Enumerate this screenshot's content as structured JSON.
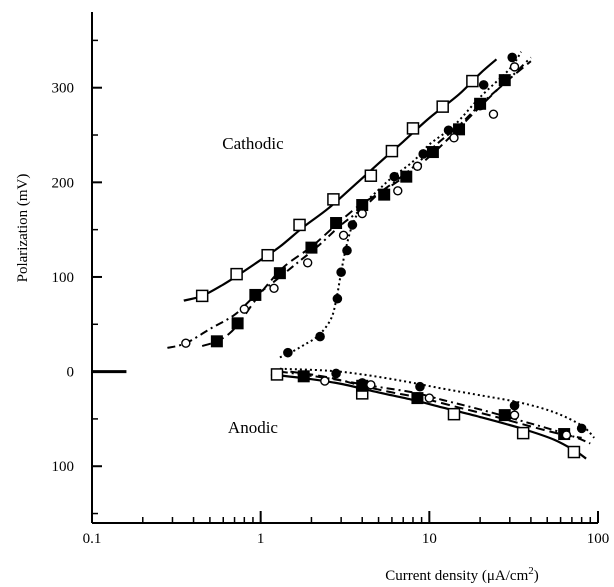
{
  "chart_data": {
    "type": "line",
    "title": "",
    "xlabel": "Current density (μA/cm",
    "xlabel_sup": "2",
    "xlabel_close": ")",
    "ylabel": "Polarization (mV)",
    "xscale": "log",
    "xlim": [
      0.1,
      100
    ],
    "ylim": [
      -160,
      380
    ],
    "grid": false,
    "legend": "none",
    "x_ticks": [
      {
        "value": 0.1,
        "label": "0.1"
      },
      {
        "value": 1,
        "label": "1"
      },
      {
        "value": 10,
        "label": "10"
      },
      {
        "value": 100,
        "label": "100"
      }
    ],
    "y_ticks": [
      {
        "value": -100,
        "label": "100"
      },
      {
        "value": 0,
        "label": "0"
      },
      {
        "value": 100,
        "label": "100"
      },
      {
        "value": 200,
        "label": "200"
      },
      {
        "value": 300,
        "label": "300"
      }
    ],
    "zero_marker": {
      "x_start": 0.1,
      "x_end": 0.16,
      "y": 0
    },
    "annotations": [
      {
        "text": "Cathodic",
        "x": 0.9,
        "y": 235
      },
      {
        "text": "Anodic",
        "x": 0.9,
        "y": -65
      }
    ],
    "series": [
      {
        "marker": "open-square",
        "line": "solid",
        "cathodic": {
          "curve": [
            [
              0.35,
              75
            ],
            [
              0.45,
              80
            ],
            [
              0.6,
              92
            ],
            [
              0.75,
              103
            ],
            [
              1.0,
              118
            ],
            [
              1.3,
              132
            ],
            [
              1.8,
              153
            ],
            [
              2.5,
              172
            ],
            [
              3.5,
              195
            ],
            [
              5,
              220
            ],
            [
              7,
              243
            ],
            [
              10,
              268
            ],
            [
              15,
              293
            ],
            [
              20,
              315
            ],
            [
              25,
              330
            ]
          ],
          "points": [
            [
              0.45,
              80
            ],
            [
              0.72,
              103
            ],
            [
              1.1,
              123
            ],
            [
              1.7,
              155
            ],
            [
              2.7,
              182
            ],
            [
              4.5,
              207
            ],
            [
              6,
              233
            ],
            [
              8,
              257
            ],
            [
              12,
              280
            ],
            [
              18,
              307
            ]
          ]
        },
        "anodic": {
          "curve": [
            [
              1.15,
              -3
            ],
            [
              2,
              -8
            ],
            [
              3,
              -13
            ],
            [
              5,
              -22
            ],
            [
              8,
              -30
            ],
            [
              12,
              -38
            ],
            [
              20,
              -48
            ],
            [
              35,
              -60
            ],
            [
              55,
              -72
            ],
            [
              75,
              -85
            ],
            [
              85,
              -92
            ]
          ],
          "points": [
            [
              1.25,
              -3
            ],
            [
              4,
              -23
            ],
            [
              14,
              -45
            ],
            [
              36,
              -65
            ],
            [
              72,
              -85
            ]
          ]
        }
      },
      {
        "marker": "filled-square",
        "line": "long-dash",
        "cathodic": {
          "curve": [
            [
              0.45,
              27
            ],
            [
              0.55,
              32
            ],
            [
              0.65,
              40
            ],
            [
              0.75,
              52
            ],
            [
              0.9,
              72
            ],
            [
              1.1,
              92
            ],
            [
              1.4,
              112
            ],
            [
              2,
              132
            ],
            [
              2.8,
              155
            ],
            [
              3.8,
              175
            ],
            [
              5,
              188
            ],
            [
              7,
              205
            ],
            [
              10,
              227
            ],
            [
              14,
              252
            ],
            [
              20,
              280
            ],
            [
              28,
              305
            ],
            [
              40,
              328
            ]
          ],
          "points": [
            [
              0.55,
              32
            ],
            [
              0.73,
              51
            ],
            [
              0.93,
              81
            ],
            [
              1.3,
              104
            ],
            [
              2,
              131
            ],
            [
              2.8,
              157
            ],
            [
              4,
              176
            ],
            [
              5.4,
              187
            ],
            [
              7.3,
              206
            ],
            [
              10.5,
              232
            ],
            [
              15,
              256
            ],
            [
              20,
              283
            ],
            [
              28,
              308
            ]
          ]
        },
        "anodic": {
          "curve": [
            [
              1.5,
              0
            ],
            [
              2.5,
              -6
            ],
            [
              4,
              -15
            ],
            [
              6,
              -22
            ],
            [
              9,
              -28
            ],
            [
              15,
              -38
            ],
            [
              25,
              -48
            ],
            [
              40,
              -58
            ],
            [
              60,
              -66
            ],
            [
              80,
              -70
            ]
          ],
          "points": [
            [
              1.8,
              -5
            ],
            [
              4,
              -15
            ],
            [
              8.5,
              -28
            ],
            [
              28,
              -46
            ],
            [
              63,
              -66
            ]
          ]
        }
      },
      {
        "marker": "open-circle",
        "line": "dash-dot",
        "cathodic": {
          "curve": [
            [
              0.28,
              25
            ],
            [
              0.36,
              30
            ],
            [
              0.5,
              45
            ],
            [
              0.7,
              60
            ],
            [
              0.9,
              78
            ],
            [
              1.2,
              95
            ],
            [
              1.6,
              113
            ],
            [
              2.2,
              133
            ],
            [
              3,
              155
            ],
            [
              4,
              172
            ],
            [
              5,
              188
            ],
            [
              6.5,
              203
            ],
            [
              8.5,
              220
            ],
            [
              11,
              240
            ],
            [
              15,
              260
            ],
            [
              20,
              282
            ],
            [
              28,
              305
            ],
            [
              40,
              332
            ]
          ],
          "points": [
            [
              0.36,
              30
            ],
            [
              0.8,
              66
            ],
            [
              1.2,
              88
            ],
            [
              1.9,
              115
            ],
            [
              3.1,
              144
            ],
            [
              4,
              167
            ],
            [
              6.5,
              191
            ],
            [
              8.5,
              217
            ],
            [
              14,
              247
            ],
            [
              24,
              272
            ],
            [
              32,
              322
            ]
          ]
        },
        "anodic": {
          "curve": [
            [
              1.3,
              0
            ],
            [
              2.5,
              -7
            ],
            [
              4.5,
              -15
            ],
            [
              8,
              -22
            ],
            [
              12,
              -30
            ],
            [
              20,
              -40
            ],
            [
              35,
              -52
            ],
            [
              55,
              -62
            ],
            [
              75,
              -70
            ],
            [
              90,
              -76
            ]
          ],
          "points": [
            [
              2.4,
              -10
            ],
            [
              4.5,
              -14
            ],
            [
              10,
              -28
            ],
            [
              32,
              -46
            ],
            [
              65,
              -67
            ]
          ]
        }
      },
      {
        "marker": "filled-circle",
        "line": "dotted",
        "cathodic": {
          "curve": [
            [
              1.3,
              15
            ],
            [
              1.5,
              20
            ],
            [
              1.8,
              28
            ],
            [
              2.2,
              38
            ],
            [
              2.6,
              55
            ],
            [
              2.8,
              75
            ],
            [
              3.0,
              105
            ],
            [
              3.2,
              130
            ],
            [
              3.5,
              155
            ],
            [
              4,
              175
            ],
            [
              5,
              192
            ],
            [
              6,
              205
            ],
            [
              8,
              222
            ],
            [
              10,
              240
            ],
            [
              14,
              260
            ],
            [
              20,
              290
            ],
            [
              30,
              320
            ],
            [
              35,
              338
            ]
          ],
          "points": [
            [
              1.45,
              20
            ],
            [
              2.25,
              37
            ],
            [
              2.85,
              77
            ],
            [
              3.0,
              105
            ],
            [
              3.25,
              128
            ],
            [
              3.5,
              155
            ],
            [
              4,
              175
            ],
            [
              6.2,
              206
            ],
            [
              9.2,
              230
            ],
            [
              13,
              255
            ],
            [
              20,
              281
            ],
            [
              21,
              303
            ],
            [
              31,
              332
            ]
          ]
        },
        "anodic": {
          "curve": [
            [
              1.3,
              3
            ],
            [
              2.5,
              1
            ],
            [
              4,
              -3
            ],
            [
              7,
              -10
            ],
            [
              12,
              -18
            ],
            [
              20,
              -25
            ],
            [
              35,
              -33
            ],
            [
              55,
              -43
            ],
            [
              80,
              -57
            ],
            [
              95,
              -70
            ]
          ],
          "points": [
            [
              2.8,
              -2
            ],
            [
              4,
              -12
            ],
            [
              8.8,
              -16
            ],
            [
              32,
              -36
            ],
            [
              80,
              -60
            ]
          ]
        }
      }
    ]
  }
}
